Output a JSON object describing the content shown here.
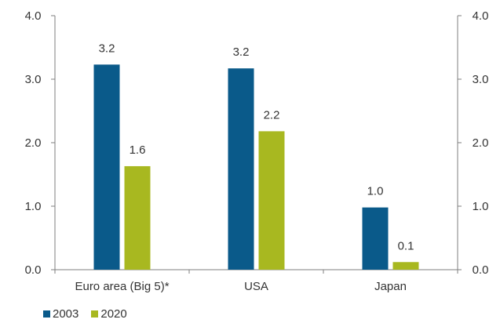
{
  "chart_data": {
    "type": "bar",
    "categories": [
      "Euro area (Big 5)*",
      "USA",
      "Japan"
    ],
    "series": [
      {
        "name": "2003",
        "values": [
          3.2,
          3.2,
          1.0
        ],
        "color": "#0a5a8a"
      },
      {
        "name": "2020",
        "values": [
          1.6,
          2.2,
          0.1
        ],
        "color": "#a8b820"
      }
    ],
    "data_labels": [
      [
        "3.2",
        "3.2",
        "1.0"
      ],
      [
        "1.6",
        "2.2",
        "0.1"
      ]
    ],
    "bar_values_estimated": [
      [
        3.23,
        3.17,
        0.98
      ],
      [
        1.63,
        2.18,
        0.12
      ]
    ],
    "ylim": [
      0,
      4
    ],
    "yticks": [
      "0.0",
      "1.0",
      "2.0",
      "3.0",
      "4.0"
    ],
    "y_axis_mirrored_right": true,
    "grid": false,
    "legend_position": "bottom-left"
  }
}
